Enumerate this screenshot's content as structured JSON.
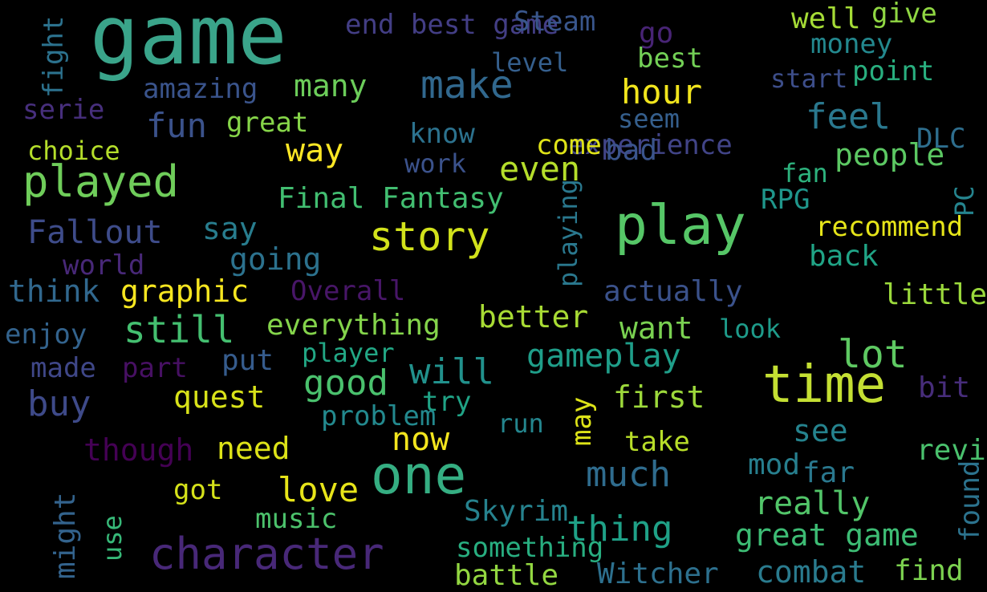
{
  "words": [
    {
      "id": "game",
      "text": "game",
      "color": "#3aa48a"
    },
    {
      "id": "play",
      "text": "play",
      "color": "#56c667"
    },
    {
      "id": "time",
      "text": "time",
      "color": "#c4df33"
    },
    {
      "id": "one",
      "text": "one",
      "color": "#35ae82"
    },
    {
      "id": "character",
      "text": "character",
      "color": "#482878"
    },
    {
      "id": "played",
      "text": "played",
      "color": "#6fcd5a"
    },
    {
      "id": "story",
      "text": "story",
      "color": "#d2e21b"
    },
    {
      "id": "make",
      "text": "make",
      "color": "#31688e"
    },
    {
      "id": "lot",
      "text": "lot",
      "color": "#5ec962"
    },
    {
      "id": "good",
      "text": "good",
      "color": "#4ac16d"
    },
    {
      "id": "will",
      "text": "will",
      "color": "#21918c"
    },
    {
      "id": "much",
      "text": "much",
      "color": "#2f6c8e"
    },
    {
      "id": "thing",
      "text": "thing",
      "color": "#1fa187"
    },
    {
      "id": "great_game",
      "text": "great game",
      "color": "#3dbc74"
    },
    {
      "id": "love",
      "text": "love",
      "color": "#e7e419"
    },
    {
      "id": "now",
      "text": "now",
      "color": "#f3e51e"
    },
    {
      "id": "still",
      "text": "still",
      "color": "#44bf70"
    },
    {
      "id": "gameplay",
      "text": "gameplay",
      "color": "#1f9e89"
    },
    {
      "id": "even",
      "text": "even",
      "color": "#b5de2b"
    },
    {
      "id": "hour",
      "text": "hour",
      "color": "#f1e51d"
    },
    {
      "id": "feel",
      "text": "feel",
      "color": "#2a788e"
    },
    {
      "id": "fun",
      "text": "fun",
      "color": "#3b528b"
    },
    {
      "id": "way",
      "text": "way",
      "color": "#fde725"
    },
    {
      "id": "buy",
      "text": "buy",
      "color": "#3e4a89"
    },
    {
      "id": "graphic",
      "text": "graphic",
      "color": "#f6e620"
    },
    {
      "id": "want",
      "text": "want",
      "color": "#7ad151"
    },
    {
      "id": "first",
      "text": "first",
      "color": "#9dd93b"
    },
    {
      "id": "combat",
      "text": "combat",
      "color": "#2a7b8e"
    },
    {
      "id": "Witcher",
      "text": "Witcher",
      "color": "#2d708e"
    },
    {
      "id": "really",
      "text": "really",
      "color": "#52c569"
    },
    {
      "id": "better",
      "text": "better",
      "color": "#a8db34"
    },
    {
      "id": "everything",
      "text": "everything",
      "color": "#84d44b"
    },
    {
      "id": "Final_Fantasy",
      "text": "Final Fantasy",
      "color": "#42be71"
    },
    {
      "id": "Fallout",
      "text": "Fallout",
      "color": "#3e4c8a"
    },
    {
      "id": "Skyrim",
      "text": "Skyrim",
      "color": "#33638d"
    },
    {
      "id": "quest",
      "text": "quest",
      "color": "#26828e"
    },
    {
      "id": "need",
      "text": "need",
      "color": "#d8e219"
    },
    {
      "id": "though",
      "text": "though",
      "color": "#dde318"
    },
    {
      "id": "think",
      "text": "think",
      "color": "#440154"
    },
    {
      "id": "going",
      "text": "going",
      "color": "#31688e"
    },
    {
      "id": "say",
      "text": "say",
      "color": "#2c728e"
    },
    {
      "id": "got",
      "text": "got",
      "color": "#287d8e"
    },
    {
      "id": "many",
      "text": "many",
      "color": "#d5e21a"
    },
    {
      "id": "great",
      "text": "great",
      "color": "#6ccd5a"
    },
    {
      "id": "amazing",
      "text": "amazing",
      "color": "#86d549"
    },
    {
      "id": "actually",
      "text": "actually",
      "color": "#3a548c"
    },
    {
      "id": "end_best_game",
      "text": "end best game",
      "color": "#3b528b"
    },
    {
      "id": "Steam",
      "text": "Steam",
      "color": "#433e85"
    },
    {
      "id": "level",
      "text": "level",
      "color": "#39568c"
    },
    {
      "id": "go",
      "text": "go",
      "color": "#355f8d"
    },
    {
      "id": "well",
      "text": "well",
      "color": "#482475"
    },
    {
      "id": "give",
      "text": "give",
      "color": "#a5db36"
    },
    {
      "id": "money",
      "text": "money",
      "color": "#90d743"
    },
    {
      "id": "best",
      "text": "best",
      "color": "#23888e"
    },
    {
      "id": "point",
      "text": "point",
      "color": "#73d056"
    },
    {
      "id": "start",
      "text": "start",
      "color": "#29af7f"
    },
    {
      "id": "seem",
      "text": "seem",
      "color": "#3d4e8a"
    },
    {
      "id": "experience",
      "text": "experience",
      "color": "#355f8d"
    },
    {
      "id": "know",
      "text": "know",
      "color": "#414487"
    },
    {
      "id": "work",
      "text": "work",
      "color": "#2c728e"
    },
    {
      "id": "come",
      "text": "come",
      "color": "#3b528b"
    },
    {
      "id": "bad",
      "text": "bad",
      "color": "#dfe318"
    },
    {
      "id": "people",
      "text": "people",
      "color": "#3a548c"
    },
    {
      "id": "DLC",
      "text": "DLC",
      "color": "#5cc863"
    },
    {
      "id": "fan",
      "text": "fan",
      "color": "#2e6e8e"
    },
    {
      "id": "PC",
      "text": "PC",
      "color": "#2db27d"
    },
    {
      "id": "RPG",
      "text": "RPG",
      "color": "#25848e"
    },
    {
      "id": "recommend",
      "text": "recommend",
      "color": "#1f968b"
    },
    {
      "id": "back",
      "text": "back",
      "color": "#e5e419"
    },
    {
      "id": "playing",
      "text": "playing",
      "color": "#20a486"
    },
    {
      "id": "world",
      "text": "world",
      "color": "#2a788e"
    },
    {
      "id": "Overall",
      "text": "Overall",
      "color": "#482878"
    },
    {
      "id": "little",
      "text": "little",
      "color": "#481668"
    },
    {
      "id": "look",
      "text": "look",
      "color": "#9bd93c"
    },
    {
      "id": "enjoy",
      "text": "enjoy",
      "color": "#1e9b8a"
    },
    {
      "id": "player",
      "text": "player",
      "color": "#33638d"
    },
    {
      "id": "put",
      "text": "put",
      "color": "#22a785"
    },
    {
      "id": "made",
      "text": "made",
      "color": "#365c8d"
    },
    {
      "id": "part",
      "text": "part",
      "color": "#3f4788"
    },
    {
      "id": "bit",
      "text": "bit",
      "color": "#471063"
    },
    {
      "id": "try",
      "text": "try",
      "color": "#472d7b"
    },
    {
      "id": "problem",
      "text": "problem",
      "color": "#20a386"
    },
    {
      "id": "run",
      "text": "run",
      "color": "#23898e"
    },
    {
      "id": "may",
      "text": "may",
      "color": "#24868e"
    },
    {
      "id": "see",
      "text": "see",
      "color": "#dde318"
    },
    {
      "id": "take",
      "text": "take",
      "color": "#25838e"
    },
    {
      "id": "review",
      "text": "review",
      "color": "#b8de29"
    },
    {
      "id": "mod",
      "text": "mod",
      "color": "#4ac16d"
    },
    {
      "id": "far",
      "text": "far",
      "color": "#277f8e"
    },
    {
      "id": "found",
      "text": "found",
      "color": "#2a788e"
    },
    {
      "id": "use",
      "text": "use",
      "color": "#2c738e"
    },
    {
      "id": "music",
      "text": "music",
      "color": "#37b878"
    },
    {
      "id": "something",
      "text": "something",
      "color": "#4cc26c"
    },
    {
      "id": "battle",
      "text": "battle",
      "color": "#28ae80"
    },
    {
      "id": "find",
      "text": "find",
      "color": "#93d741"
    },
    {
      "id": "might",
      "text": "might",
      "color": "#7cd250"
    },
    {
      "id": "fight",
      "text": "fight",
      "color": "#2c728e"
    },
    {
      "id": "serie",
      "text": "serie",
      "color": "#472f7d"
    },
    {
      "id": "choice",
      "text": "choice",
      "color": "#b5de2b"
    }
  ]
}
